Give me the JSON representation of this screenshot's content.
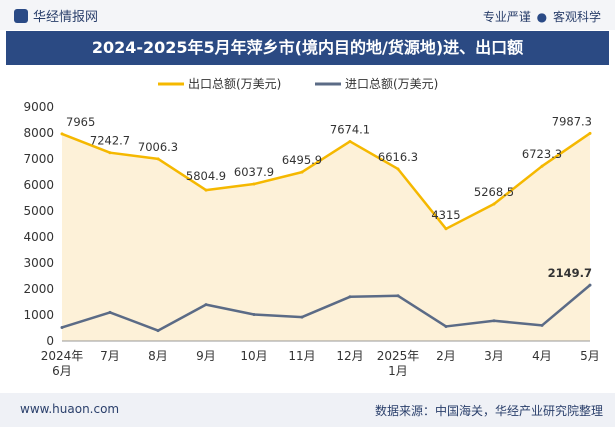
{
  "header": {
    "brand": "华经情报网",
    "tag1": "专业严谨",
    "tag_sep": "●",
    "tag2": "客观科学"
  },
  "footer": {
    "site": "www.huaon.com",
    "source": "数据来源：中国海关，华经产业研究院整理"
  },
  "colors": {
    "export": "#f5b800",
    "export_fill": "#fdf1d8",
    "import": "#5b6b86",
    "title_bg": "#2b4a83"
  },
  "chart_data": {
    "type": "line",
    "title": "2024-2025年5月年萍乡市(境内目的地/货源地)进、出口额",
    "categories": [
      [
        "2024年",
        "6月"
      ],
      [
        "7月"
      ],
      [
        "8月"
      ],
      [
        "9月"
      ],
      [
        "10月"
      ],
      [
        "11月"
      ],
      [
        "12月"
      ],
      [
        "2025年",
        "1月"
      ],
      [
        "2月"
      ],
      [
        "3月"
      ],
      [
        "4月"
      ],
      [
        "5月"
      ]
    ],
    "series": [
      {
        "name": "出口总额(万美元)",
        "color": "#f5b800",
        "area": true,
        "values": [
          7965,
          7242.7,
          7006.3,
          5804.9,
          6037.9,
          6495.9,
          7674.1,
          6616.3,
          4315,
          5268.5,
          6723.3,
          7987.3
        ],
        "labels": [
          "7965",
          "7242.7",
          "7006.3",
          "5804.9",
          "6037.9",
          "6495.9",
          "7674.1",
          "6616.3",
          "4315",
          "5268.5",
          "6723.3",
          "7987.3"
        ]
      },
      {
        "name": "进口总额(万美元)",
        "color": "#5b6b86",
        "area": false,
        "values": [
          520,
          1100,
          400,
          1400,
          1020,
          920,
          1700,
          1740,
          560,
          780,
          600,
          2149.7
        ],
        "labels": [
          "",
          "",
          "",
          "",
          "",
          "",
          "",
          "",
          "",
          "",
          "",
          "2149.7"
        ]
      }
    ],
    "yticks": [
      0,
      1000,
      2000,
      3000,
      4000,
      5000,
      6000,
      7000,
      8000,
      9000
    ],
    "ylim": [
      0,
      9000
    ],
    "xlabel": "",
    "ylabel": "",
    "legend": "top-center",
    "grid": false
  }
}
